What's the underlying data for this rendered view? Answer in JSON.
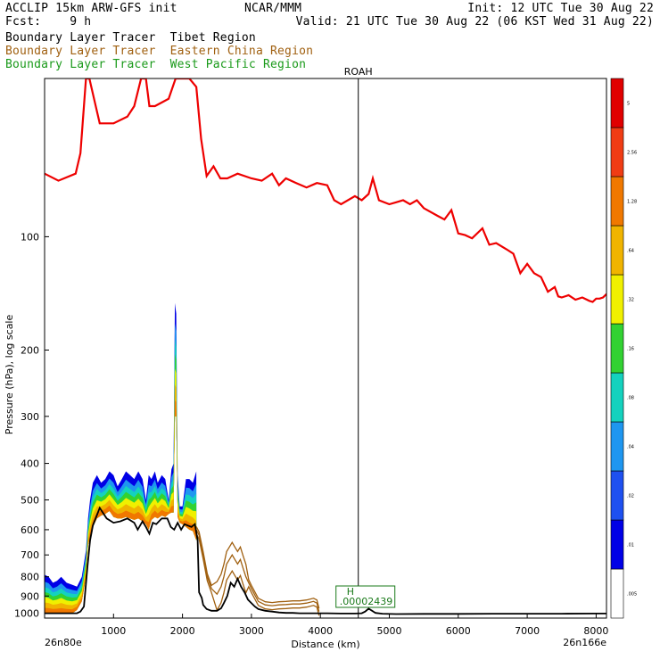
{
  "header": {
    "line1_left": "ACCLIP 15km ARW-GFS init",
    "line1_mid": "NCAR/MMM",
    "line1_right": "Init: 12 UTC Tue 30 Aug 22",
    "line2_left": "Fcst:    9 h",
    "line2_right": "Valid: 21 UTC Tue 30 Aug 22 (06 KST Wed 31 Aug 22)",
    "legend": [
      {
        "prefix": "Boundary Layer Tracer",
        "region": "Tibet Region",
        "color": "#000000"
      },
      {
        "prefix": "Boundary Layer Tracer",
        "region": "Eastern China Region",
        "color": "#a06010"
      },
      {
        "prefix": "Boundary Layer Tracer",
        "region": "West Pacific Region",
        "color": "#1a9a1a"
      }
    ]
  },
  "chart_data": {
    "type": "area",
    "ylabel": "Pressure (hPa), log scale",
    "xlabel": "Distance (km)",
    "xlim": [
      0,
      8150
    ],
    "ylim": [
      1030,
      38
    ],
    "y_log_scale": true,
    "x_ticks": [
      "1000",
      "2000",
      "3000",
      "4000",
      "5000",
      "6000",
      "7000",
      "8000"
    ],
    "y_ticks": [
      "100",
      "200",
      "300",
      "400",
      "500",
      "600",
      "700",
      "800",
      "900",
      "1000"
    ],
    "left_endpoint": "26n80e",
    "right_endpoint": "26n166e",
    "station_marker": {
      "label": "ROAH",
      "x": 4550
    },
    "high_label": {
      "letter": "H",
      "value": ".00002439",
      "x": 4770
    },
    "colorbar_labels": [
      ".005",
      ".01",
      ".02",
      ".04",
      ".08",
      ".16",
      ".32",
      ".64",
      "1.28",
      "2.56",
      "5"
    ],
    "colorbar_colors": [
      "#ffffff",
      "#0000e6",
      "#1e50f0",
      "#1e96f0",
      "#14d2be",
      "#32d232",
      "#f0f000",
      "#f0b400",
      "#f07800",
      "#f03c14",
      "#e00000"
    ],
    "tropopause_color": "#ee0000",
    "terrain_color": "#000000",
    "tropopause": {
      "x": [
        0,
        200,
        450,
        520,
        600,
        650,
        800,
        1000,
        1200,
        1300,
        1400,
        1470,
        1520,
        1600,
        1700,
        1800,
        1900,
        2000,
        2100,
        2200,
        2270,
        2350,
        2450,
        2550,
        2650,
        2800,
        3000,
        3150,
        3300,
        3400,
        3500,
        3650,
        3800,
        3950,
        4100,
        4200,
        4300,
        4500,
        4600,
        4700,
        4760,
        4850,
        5000,
        5100,
        5200,
        5300,
        5400,
        5500,
        5700,
        5800,
        5900,
        6000,
        6100,
        6200,
        6350,
        6450,
        6550,
        6700,
        6800,
        6900,
        7000,
        7100,
        7200,
        7300,
        7400,
        7450,
        7500,
        7600,
        7700,
        7800,
        7900,
        7950,
        8000,
        8050,
        8100,
        8150
      ],
      "y": [
        68,
        71,
        68,
        60,
        38,
        38,
        50,
        50,
        48,
        45,
        38,
        38,
        45,
        45,
        44,
        43,
        38,
        38,
        38,
        40,
        55,
        69,
        65,
        70,
        70,
        68,
        70,
        71,
        68,
        73,
        70,
        72,
        74,
        72,
        73,
        80,
        82,
        78,
        80,
        77,
        70,
        80,
        82,
        81,
        80,
        82,
        80,
        84,
        88,
        90,
        85,
        98,
        99,
        101,
        95,
        105,
        104,
        108,
        111,
        125,
        118,
        125,
        128,
        140,
        136,
        144,
        145,
        143,
        147,
        145,
        148,
        149,
        146,
        146,
        145,
        142
      ]
    },
    "terrain": {
      "x": [
        0,
        150,
        300,
        400,
        470,
        520,
        570,
        620,
        660,
        700,
        740,
        800,
        900,
        1000,
        1100,
        1200,
        1300,
        1350,
        1420,
        1470,
        1520,
        1570,
        1620,
        1700,
        1780,
        1830,
        1880,
        1930,
        1980,
        2030,
        2080,
        2130,
        2180,
        2220,
        2240,
        2280,
        2300,
        2350,
        2420,
        2500,
        2560,
        2600,
        2650,
        2700,
        2750,
        2800,
        2850,
        2900,
        2950,
        3000,
        3050,
        3100,
        3200,
        3300,
        3400,
        3500,
        3600,
        3700,
        3800,
        3900,
        4000,
        4100,
        4300,
        4500,
        4600,
        4650,
        4700,
        4750,
        4800,
        4900,
        5100,
        5500,
        6000,
        6500,
        7000,
        7500,
        8000,
        8150
      ],
      "y": [
        1000,
        1000,
        1000,
        1000,
        1000,
        990,
        960,
        760,
        640,
        585,
        560,
        525,
        560,
        575,
        570,
        560,
        575,
        600,
        570,
        590,
        615,
        575,
        580,
        560,
        560,
        590,
        600,
        575,
        600,
        580,
        585,
        590,
        580,
        640,
        880,
        910,
        950,
        975,
        985,
        985,
        970,
        940,
        900,
        830,
        850,
        810,
        850,
        880,
        920,
        940,
        960,
        975,
        985,
        990,
        995,
        998,
        998,
        1000,
        1000,
        1000,
        1000,
        1000,
        1002,
        1002,
        1000,
        990,
        972,
        985,
        998,
        1003,
        1005,
        1004,
        1004,
        1003,
        1003,
        1003,
        1002,
        1002
      ]
    },
    "tracer_west_pacific": {
      "x": [
        0,
        60,
        120,
        180,
        240,
        320,
        400,
        470,
        540,
        600,
        630,
        660,
        700,
        760,
        820,
        880,
        940,
        1000,
        1060,
        1120,
        1180,
        1240,
        1300,
        1360,
        1420,
        1470,
        1510,
        1550,
        1600,
        1640,
        1700,
        1750,
        1800,
        1840,
        1870,
        1890,
        1910,
        1930,
        1960,
        2000,
        2050,
        2100,
        2150,
        2200
      ],
      "top": [
        790,
        800,
        830,
        820,
        800,
        830,
        840,
        850,
        800,
        680,
        560,
        500,
        450,
        430,
        450,
        440,
        420,
        430,
        460,
        440,
        420,
        430,
        440,
        420,
        440,
        500,
        430,
        440,
        420,
        450,
        430,
        440,
        500,
        415,
        400,
        150,
        160,
        430,
        520,
        520,
        440,
        440,
        450,
        420
      ],
      "bottom": [
        1000,
        1000,
        1000,
        1000,
        1000,
        1000,
        1000,
        980,
        930,
        800,
        660,
        625,
        590,
        560,
        550,
        545,
        535,
        555,
        560,
        560,
        555,
        560,
        565,
        560,
        570,
        580,
        600,
        565,
        555,
        560,
        550,
        555,
        545,
        540,
        540,
        300,
        300,
        555,
        575,
        580,
        590,
        600,
        605,
        640
      ]
    },
    "tracer_eastern_china": {
      "x": [
        2200,
        2240,
        2300,
        2360,
        2420,
        2500,
        2560,
        2600,
        2640,
        2680,
        2720,
        2760,
        2800,
        2840,
        2880,
        2920,
        2960,
        3000,
        3100,
        3200,
        3300,
        3400,
        3500,
        3600,
        3700,
        3800,
        3900,
        3950,
        3980
      ],
      "y": [
        600,
        620,
        700,
        800,
        860,
        890,
        850,
        800,
        740,
        720,
        700,
        720,
        740,
        720,
        760,
        800,
        830,
        860,
        930,
        950,
        955,
        950,
        948,
        945,
        945,
        940,
        930,
        940,
        990
      ]
    }
  }
}
